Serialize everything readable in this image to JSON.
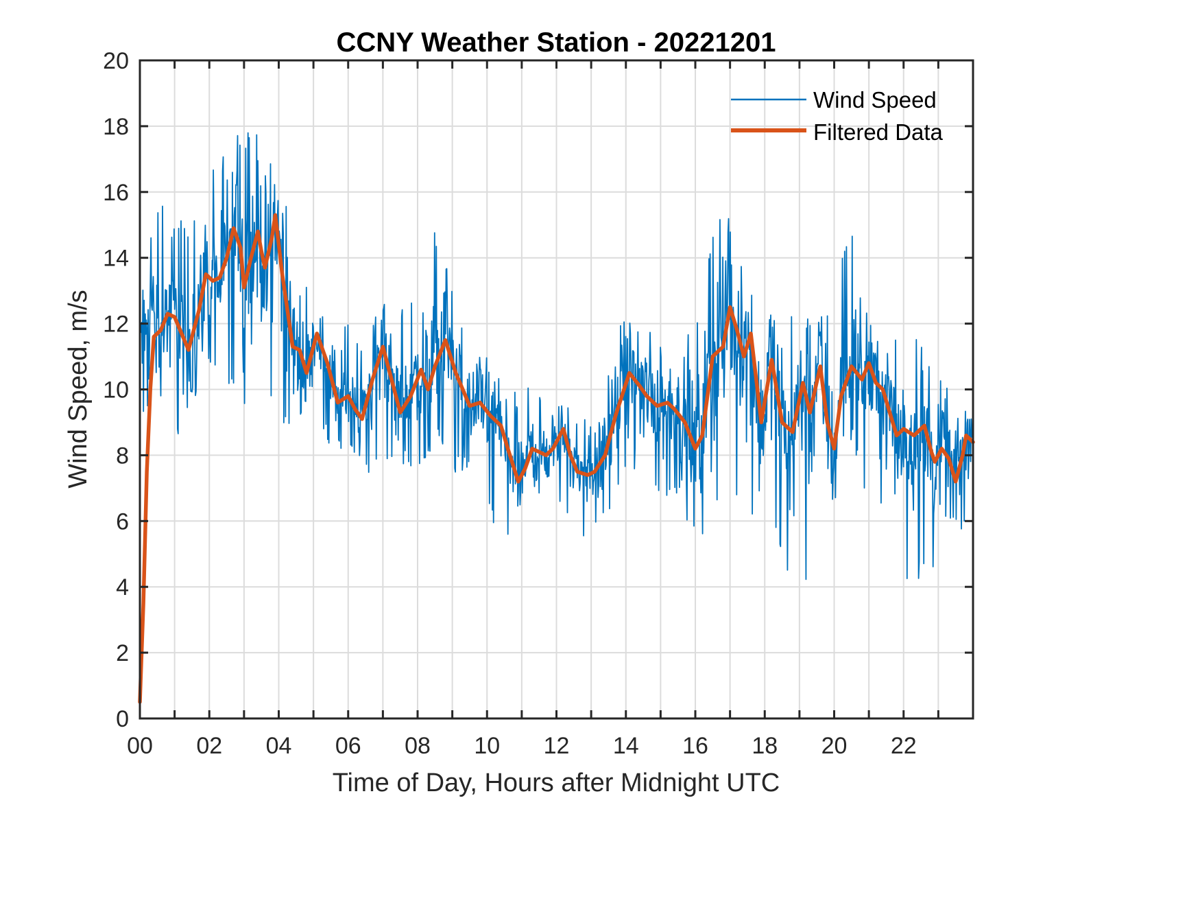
{
  "chart_data": {
    "type": "line",
    "title": "CCNY Weather Station - 20221201",
    "xlabel": "Time of Day, Hours after Midnight UTC",
    "ylabel": "Wind Speed, m/s",
    "xlim": [
      0,
      24
    ],
    "ylim": [
      0,
      20
    ],
    "grid": true,
    "legend_position": "top-right",
    "x_ticks": [
      0,
      2,
      4,
      6,
      8,
      10,
      12,
      14,
      16,
      18,
      20,
      22
    ],
    "x_tick_labels": [
      "00",
      "02",
      "04",
      "06",
      "08",
      "10",
      "12",
      "14",
      "16",
      "18",
      "20",
      "22"
    ],
    "x_minor_ticks": [
      1,
      3,
      5,
      7,
      9,
      11,
      13,
      15,
      17,
      19,
      21,
      23
    ],
    "y_ticks": [
      0,
      2,
      4,
      6,
      8,
      10,
      12,
      14,
      16,
      18,
      20
    ],
    "y_tick_labels": [
      "0",
      "2",
      "4",
      "6",
      "8",
      "10",
      "12",
      "14",
      "16",
      "18",
      "20"
    ],
    "series": [
      {
        "name": "Wind Speed",
        "color": "#0072BD",
        "style": "thin",
        "description": "high-frequency raw samples; envelope values listed as x/low/high around the filtered trend",
        "envelope": {
          "x": [
            0.0,
            0.5,
            1.0,
            1.5,
            2.0,
            2.5,
            3.0,
            3.5,
            4.0,
            4.5,
            5.0,
            5.5,
            6.0,
            6.5,
            7.0,
            7.5,
            8.0,
            8.5,
            9.0,
            9.5,
            10.0,
            10.5,
            11.0,
            11.5,
            12.0,
            12.5,
            13.0,
            13.5,
            14.0,
            14.5,
            15.0,
            15.5,
            16.0,
            16.5,
            17.0,
            17.5,
            18.0,
            18.5,
            19.0,
            19.5,
            20.0,
            20.5,
            21.0,
            21.5,
            22.0,
            22.5,
            23.0,
            23.5,
            24.0
          ],
          "low": [
            9.0,
            9.8,
            8.3,
            9.5,
            10.5,
            10.2,
            9.1,
            11.0,
            8.3,
            9.2,
            9.3,
            8.0,
            8.0,
            7.1,
            8.0,
            7.4,
            7.6,
            8.3,
            7.5,
            7.3,
            6.3,
            5.2,
            6.3,
            6.5,
            6.5,
            5.8,
            5.2,
            6.0,
            7.4,
            7.4,
            6.5,
            6.8,
            5.3,
            6.0,
            7.4,
            5.8,
            6.8,
            4.7,
            3.3,
            4.7,
            6.3,
            7.0,
            6.8,
            6.3,
            3.9,
            4.3,
            4.2,
            4.7,
            6.5
          ],
          "high": [
            13.6,
            15.8,
            15.3,
            15.2,
            16.5,
            17.8,
            17.7,
            18.4,
            16.2,
            14.7,
            12.0,
            12.4,
            12.0,
            11.5,
            12.7,
            12.5,
            13.0,
            15.1,
            13.0,
            11.5,
            11.0,
            10.0,
            10.0,
            10.3,
            9.5,
            9.5,
            9.3,
            11.0,
            12.6,
            12.5,
            11.3,
            11.5,
            11.8,
            15.2,
            15.2,
            13.4,
            12.5,
            11.8,
            12.6,
            11.9,
            13.2,
            14.9,
            12.5,
            11.6,
            11.7,
            11.7,
            10.3,
            10.0,
            9.5
          ]
        }
      },
      {
        "name": "Filtered Data",
        "color": "#D95319",
        "style": "thick",
        "x": [
          0.0,
          0.1,
          0.2,
          0.3,
          0.4,
          0.6,
          0.8,
          1.0,
          1.2,
          1.4,
          1.7,
          1.9,
          2.1,
          2.3,
          2.5,
          2.7,
          2.9,
          3.0,
          3.2,
          3.4,
          3.5,
          3.6,
          3.8,
          3.9,
          4.1,
          4.4,
          4.6,
          4.8,
          5.1,
          5.4,
          5.7,
          6.0,
          6.2,
          6.4,
          6.7,
          7.0,
          7.2,
          7.5,
          7.8,
          8.1,
          8.3,
          8.5,
          8.8,
          9.1,
          9.5,
          9.8,
          10.1,
          10.4,
          10.6,
          10.9,
          11.1,
          11.3,
          11.7,
          11.9,
          12.2,
          12.4,
          12.6,
          12.9,
          13.1,
          13.4,
          13.7,
          14.1,
          14.4,
          14.6,
          14.9,
          15.2,
          15.4,
          15.7,
          16.0,
          16.2,
          16.5,
          16.8,
          17.0,
          17.2,
          17.4,
          17.6,
          17.9,
          18.2,
          18.5,
          18.8,
          19.1,
          19.3,
          19.6,
          19.8,
          20.0,
          20.2,
          20.5,
          20.8,
          21.0,
          21.2,
          21.4,
          21.6,
          21.8,
          22.0,
          22.3,
          22.6,
          22.8,
          22.9,
          23.1,
          23.3,
          23.5,
          23.7,
          23.8,
          24.0
        ],
        "y": [
          0.5,
          3.5,
          7.5,
          10.0,
          11.6,
          11.8,
          12.3,
          12.2,
          11.7,
          11.2,
          12.4,
          13.5,
          13.3,
          13.4,
          14.0,
          14.9,
          14.3,
          13.1,
          14.0,
          14.8,
          14.2,
          13.7,
          14.6,
          15.3,
          13.5,
          11.3,
          11.2,
          10.5,
          11.7,
          10.8,
          9.6,
          9.8,
          9.4,
          9.1,
          10.3,
          11.3,
          10.5,
          9.3,
          9.8,
          10.6,
          10.0,
          10.7,
          11.5,
          10.5,
          9.5,
          9.6,
          9.2,
          8.9,
          8.2,
          7.2,
          7.6,
          8.2,
          8.0,
          8.2,
          8.8,
          8.0,
          7.5,
          7.4,
          7.5,
          8.0,
          9.2,
          10.5,
          10.1,
          9.8,
          9.5,
          9.6,
          9.4,
          9.0,
          8.2,
          8.6,
          11.0,
          11.3,
          12.5,
          11.8,
          11.0,
          11.7,
          9.0,
          10.9,
          9.0,
          8.7,
          10.2,
          9.3,
          10.7,
          9.0,
          8.2,
          9.8,
          10.7,
          10.3,
          10.8,
          10.2,
          10.0,
          9.3,
          8.6,
          8.8,
          8.6,
          8.9,
          8.1,
          7.8,
          8.2,
          7.9,
          7.2,
          8.0,
          8.6,
          8.4
        ]
      }
    ]
  }
}
